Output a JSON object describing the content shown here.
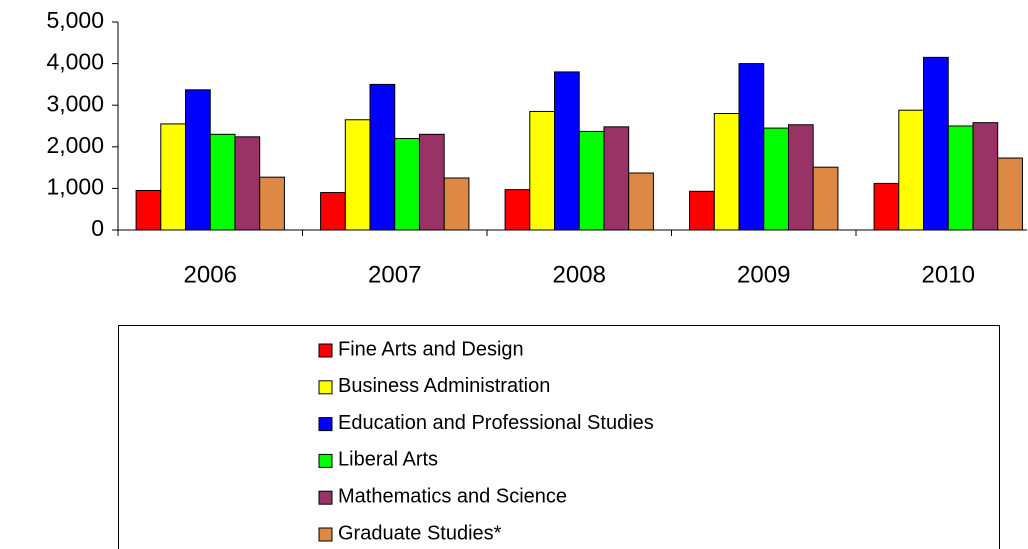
{
  "chart_data": {
    "type": "bar",
    "categories": [
      "2006",
      "2007",
      "2008",
      "2009",
      "2010"
    ],
    "series": [
      {
        "name": "Fine Arts and Design",
        "color": "#ff0000",
        "values": [
          950,
          900,
          970,
          930,
          1120
        ]
      },
      {
        "name": "Business Administration",
        "color": "#ffff00",
        "values": [
          2550,
          2650,
          2850,
          2800,
          2880
        ]
      },
      {
        "name": "Education and Professional Studies",
        "color": "#0000ff",
        "values": [
          3370,
          3500,
          3800,
          4000,
          4150
        ]
      },
      {
        "name": "Liberal Arts",
        "color": "#00ff00",
        "values": [
          2300,
          2200,
          2370,
          2450,
          2500
        ]
      },
      {
        "name": "Mathematics and Science",
        "color": "#993366",
        "values": [
          2240,
          2300,
          2480,
          2530,
          2580
        ]
      },
      {
        "name": "Graduate Studies*",
        "color": "#dd8844",
        "values": [
          1270,
          1250,
          1370,
          1510,
          1730
        ]
      }
    ],
    "ylim": [
      0,
      5000
    ],
    "yticks": [
      0,
      {
        "value": 1000,
        "label": "1,000"
      },
      {
        "value": 2000,
        "label": "2,000"
      },
      {
        "value": 3000,
        "label": "3,000"
      },
      {
        "value": 4000,
        "label": "4,000"
      },
      {
        "value": 5000,
        "label": "5,000"
      }
    ],
    "grid": false,
    "legend": "bottom"
  }
}
